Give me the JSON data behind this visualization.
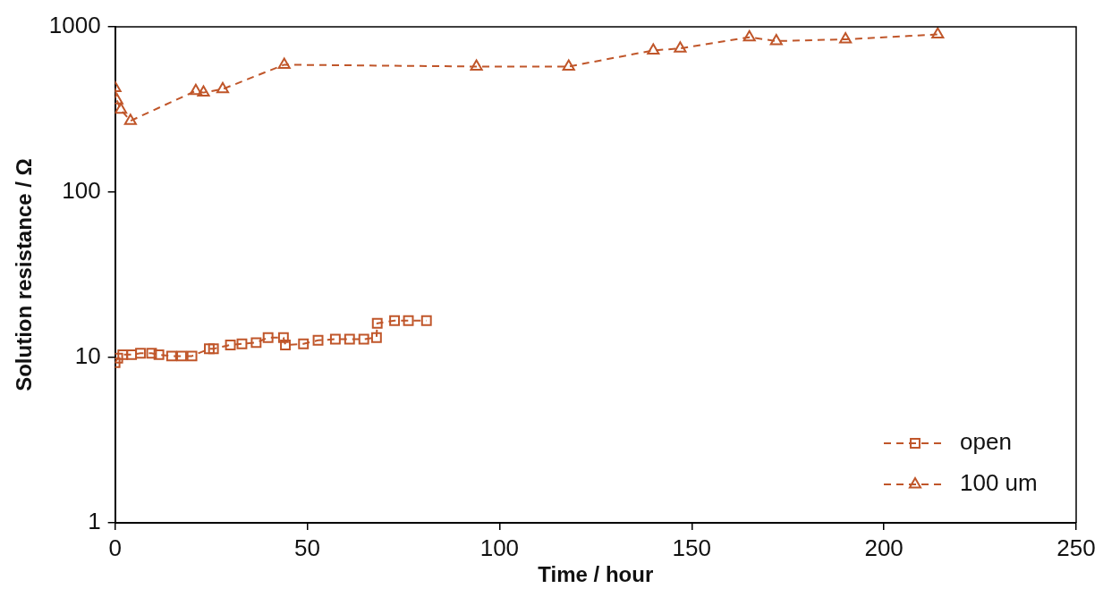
{
  "chart_data": {
    "type": "line",
    "xlabel": "Time / hour",
    "ylabel": "Solution resistance / Ω",
    "xlim": [
      0,
      250
    ],
    "xticks": [
      0,
      50,
      100,
      150,
      200,
      250
    ],
    "ylim": [
      1,
      1000
    ],
    "yticks": [
      1,
      10,
      100,
      1000
    ],
    "log": "y",
    "grid": false,
    "legend": "bottom right",
    "line_style": "dashed",
    "series": [
      {
        "name": "open",
        "color": "#c0562a",
        "marker": "square",
        "x": [
          0,
          0.7,
          2,
          4.3,
          6.6,
          9.5,
          11.4,
          14.7,
          17.3,
          20,
          24.5,
          25.6,
          30,
          33,
          36.7,
          39.8,
          43.8,
          44.3,
          49,
          52.8,
          57.3,
          61,
          64.7,
          68,
          68.2,
          72.7,
          76.3,
          81
        ],
        "values": [
          9.3,
          9.9,
          10.4,
          10.4,
          10.6,
          10.6,
          10.4,
          10.2,
          10.2,
          10.2,
          11.3,
          11.3,
          11.9,
          12.1,
          12.3,
          13.2,
          13.2,
          11.9,
          12.1,
          12.7,
          12.9,
          12.9,
          12.9,
          13.2,
          16.1,
          16.7,
          16.7,
          16.7
        ]
      },
      {
        "name": "100 um",
        "color": "#c0562a",
        "marker": "triangle",
        "x": [
          0,
          0.5,
          1.5,
          4,
          21,
          23,
          28,
          44,
          94,
          118,
          140,
          147,
          165,
          172,
          190,
          214
        ],
        "values": [
          426,
          359,
          315,
          270,
          410,
          400,
          420,
          590,
          575,
          575,
          720,
          740,
          865,
          820,
          840,
          900
        ]
      }
    ]
  }
}
